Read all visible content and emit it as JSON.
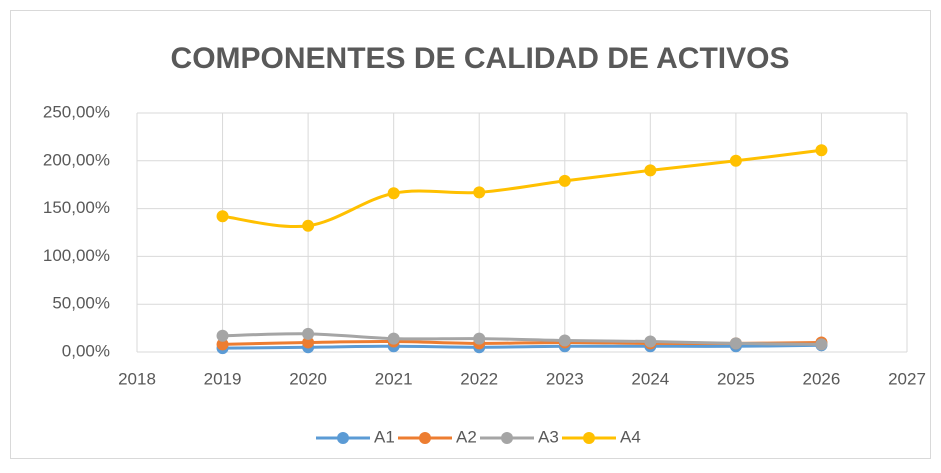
{
  "chart_data": {
    "type": "line",
    "title": "COMPONENTES DE CALIDAD DE ACTIVOS",
    "x": [
      2019,
      2020,
      2021,
      2022,
      2023,
      2024,
      2025,
      2026
    ],
    "series": [
      {
        "name": "A1",
        "color": "#5b9bd5",
        "values": [
          4,
          5,
          6,
          5,
          6,
          6,
          6,
          7
        ]
      },
      {
        "name": "A2",
        "color": "#ed7d31",
        "values": [
          8,
          10,
          11,
          9,
          10,
          9,
          9,
          10
        ]
      },
      {
        "name": "A3",
        "color": "#a5a5a5",
        "values": [
          17,
          19,
          14,
          14,
          12,
          11,
          9,
          8
        ]
      },
      {
        "name": "A4",
        "color": "#ffc000",
        "values": [
          142,
          132,
          166,
          167,
          179,
          190,
          200,
          211
        ]
      }
    ],
    "xlim": [
      2018,
      2027
    ],
    "xticks": [
      2018,
      2019,
      2020,
      2021,
      2022,
      2023,
      2024,
      2025,
      2026,
      2027
    ],
    "ylim": [
      0,
      250
    ],
    "yticks": [
      {
        "value": 0,
        "label": "0,00%"
      },
      {
        "value": 50,
        "label": "50,00%"
      },
      {
        "value": 100,
        "label": "100,00%"
      },
      {
        "value": 150,
        "label": "150,00%"
      },
      {
        "value": 200,
        "label": "200,00%"
      },
      {
        "value": 250,
        "label": "250,00%"
      }
    ],
    "grid": true,
    "legend": "bottom",
    "smooth": true
  }
}
